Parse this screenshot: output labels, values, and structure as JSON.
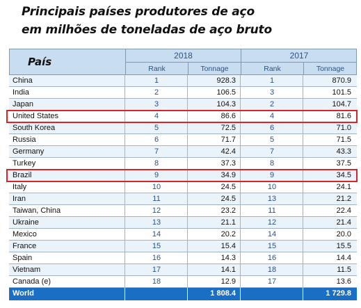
{
  "title_line1": "Principais países produtores de aço",
  "title_line2": "em milhões de toneladas de aço bruto",
  "header": {
    "country_label": "País",
    "year_a": "2018",
    "year_b": "2017",
    "rank_a": "Rank",
    "tonnage_a": "Tonnage",
    "rank_b": "Rank",
    "tonnage_b": "Tonnage"
  },
  "rows": [
    {
      "country": "China",
      "rank_2018": "1",
      "tonnage_2018": "928.3",
      "rank_2017": "1",
      "tonnage_2017": "870.9"
    },
    {
      "country": "India",
      "rank_2018": "2",
      "tonnage_2018": "106.5",
      "rank_2017": "3",
      "tonnage_2017": "101.5"
    },
    {
      "country": "Japan",
      "rank_2018": "3",
      "tonnage_2018": "104.3",
      "rank_2017": "2",
      "tonnage_2017": "104.7"
    },
    {
      "country": "United States",
      "rank_2018": "4",
      "tonnage_2018": "86.6",
      "rank_2017": "4",
      "tonnage_2017": "81.6"
    },
    {
      "country": "South Korea",
      "rank_2018": "5",
      "tonnage_2018": "72.5",
      "rank_2017": "6",
      "tonnage_2017": "71.0"
    },
    {
      "country": "Russia",
      "rank_2018": "6",
      "tonnage_2018": "71.7",
      "rank_2017": "5",
      "tonnage_2017": "71.5"
    },
    {
      "country": "Germany",
      "rank_2018": "7",
      "tonnage_2018": "42.4",
      "rank_2017": "7",
      "tonnage_2017": "43.3"
    },
    {
      "country": "Turkey",
      "rank_2018": "8",
      "tonnage_2018": "37.3",
      "rank_2017": "8",
      "tonnage_2017": "37.5"
    },
    {
      "country": "Brazil",
      "rank_2018": "9",
      "tonnage_2018": "34.9",
      "rank_2017": "9",
      "tonnage_2017": "34.5"
    },
    {
      "country": "Italy",
      "rank_2018": "10",
      "tonnage_2018": "24.5",
      "rank_2017": "10",
      "tonnage_2017": "24.1"
    },
    {
      "country": "Iran",
      "rank_2018": "11",
      "tonnage_2018": "24.5",
      "rank_2017": "13",
      "tonnage_2017": "21.2"
    },
    {
      "country": "Taiwan, China",
      "rank_2018": "12",
      "tonnage_2018": "23.2",
      "rank_2017": "11",
      "tonnage_2017": "22.4"
    },
    {
      "country": "Ukraine",
      "rank_2018": "13",
      "tonnage_2018": "21.1",
      "rank_2017": "12",
      "tonnage_2017": "21.4"
    },
    {
      "country": "Mexico",
      "rank_2018": "14",
      "tonnage_2018": "20.2",
      "rank_2017": "14",
      "tonnage_2017": "20.0"
    },
    {
      "country": "France",
      "rank_2018": "15",
      "tonnage_2018": "15.4",
      "rank_2017": "15",
      "tonnage_2017": "15.5"
    },
    {
      "country": "Spain",
      "rank_2018": "16",
      "tonnage_2018": "14.3",
      "rank_2017": "16",
      "tonnage_2017": "14.4"
    },
    {
      "country": "Vietnam",
      "rank_2018": "17",
      "tonnage_2018": "14.1",
      "rank_2017": "18",
      "tonnage_2017": "11.5"
    },
    {
      "country": "Canada (e)",
      "rank_2018": "18",
      "tonnage_2018": "12.9",
      "rank_2017": "17",
      "tonnage_2017": "13.6"
    }
  ],
  "world": {
    "country": "World",
    "tonnage_2018": "1 808.4",
    "tonnage_2017": "1 729.8"
  },
  "highlighted_countries": [
    "United States",
    "Brazil"
  ],
  "colors": {
    "header_bg": "#c9ddf0",
    "row_alt": "#eaf2fa",
    "world_bg": "#1a6fc4",
    "highlight_border": "#d9232d",
    "accent_text": "#2a5288"
  }
}
